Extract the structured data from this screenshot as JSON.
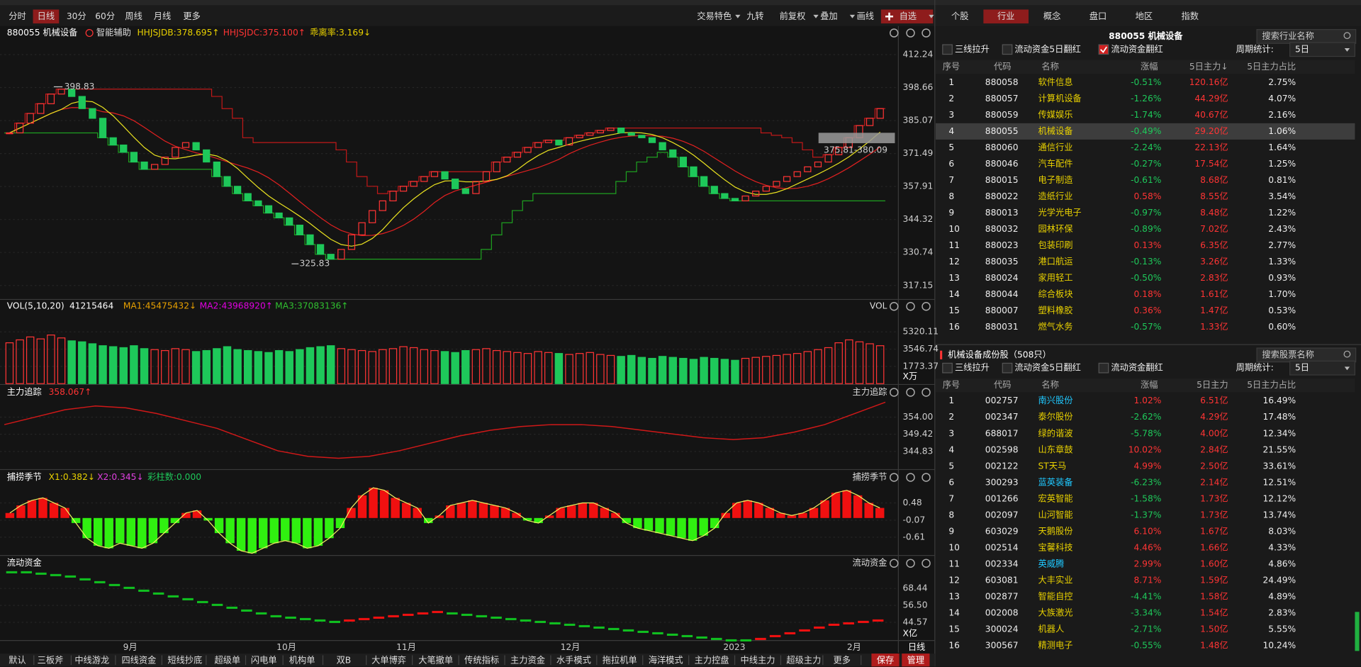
{
  "top_bar": {
    "periods": [
      "分时",
      "日线",
      "30分",
      "60分",
      "周线",
      "月线",
      "更多"
    ],
    "tools": [
      "交易特色",
      "九转",
      "前复权",
      "叠加",
      "画线",
      "自选"
    ]
  },
  "main_chart": {
    "title": "880055 机械设备",
    "assist": "智能辅助",
    "indicators": [
      "HHJSJDB:378.695↑",
      "HHJSJDC:375.100↑",
      "乖离率:3.169↓"
    ],
    "ylim": [
      311.4,
      424
    ],
    "yticks": [
      412.24,
      398.66,
      385.07,
      371.49,
      357.91,
      344.32,
      330.74,
      317.15
    ],
    "high_label": "398.83",
    "low_label": "325.83",
    "box_label": "375.81-380.09",
    "closes": [
      380,
      384,
      388,
      392,
      396,
      398,
      395,
      390,
      386,
      378,
      375,
      372,
      368,
      365,
      367,
      370,
      374,
      376,
      373,
      368,
      362,
      358,
      355,
      352,
      350,
      347,
      345,
      342,
      338,
      334,
      330,
      328,
      332,
      338,
      343,
      348,
      352,
      356,
      358,
      360,
      362,
      364,
      361,
      357,
      355,
      360,
      364,
      368,
      370,
      372,
      374,
      376,
      377,
      375,
      378,
      379,
      380,
      381,
      382,
      380,
      379,
      378,
      376,
      373,
      370,
      366,
      362,
      358,
      355,
      353,
      352,
      354,
      356,
      358,
      360,
      362,
      364,
      366,
      368,
      371,
      374,
      378,
      383,
      386,
      390
    ]
  },
  "volume_chart": {
    "title": "VOL(5,10,20)",
    "indicators": [
      "41215464",
      "MA1:45475432↓",
      "MA2:43968920↑",
      "MA3:37083136↑"
    ],
    "corner_label": "VOL",
    "unit": "X万",
    "ylim": [
      0,
      7140
    ],
    "yticks": [
      5320.11,
      3546.74,
      1773.37
    ],
    "values": [
      4200,
      4500,
      4800,
      4600,
      5000,
      4700,
      4400,
      4300,
      4100,
      3900,
      3800,
      3700,
      3900,
      3600,
      3500,
      3400,
      3600,
      3500,
      3300,
      3400,
      3600,
      3800,
      3500,
      3400,
      3300,
      3200,
      3400,
      3300,
      3500,
      3700,
      3800,
      3900,
      3600,
      3500,
      3400,
      3300,
      3500,
      3600,
      3800,
      3700,
      3500,
      3400,
      3300,
      3200,
      3400,
      3500,
      3600,
      3400,
      3300,
      3200,
      3100,
      3300,
      3200,
      3100,
      3000,
      3100,
      3200,
      3000,
      2900,
      2800,
      2900,
      2700,
      2600,
      2800,
      2700,
      2600,
      2500,
      2700,
      2600,
      2500,
      2400,
      2600,
      2700,
      2800,
      2900,
      3000,
      3100,
      3300,
      3500,
      3700,
      4200,
      4500,
      4300,
      4100,
      3900
    ]
  },
  "tracking_chart": {
    "title": "主力追踪",
    "indicator": "358.067↑",
    "corner_label": "主力追踪",
    "ylim": [
      340.2,
      358.8
    ],
    "yticks": [
      {
        "value": 354,
        "label": "354.00"
      },
      349.42,
      344.83
    ],
    "values": [
      352,
      354,
      356,
      357,
      356.5,
      355,
      353,
      351,
      348,
      345,
      343.5,
      343,
      343.5,
      345,
      347,
      349,
      350.5,
      351.5,
      352,
      352,
      351.5,
      350.5,
      349.5,
      348.5,
      348,
      348.5,
      350,
      352,
      355,
      358
    ]
  },
  "season_chart": {
    "title": "捕捞季节",
    "indicators": [
      "X1:0.382↓",
      "X2:0.345↓",
      "彩柱数:0.000"
    ],
    "corner_label": "捕捞季节",
    "ylim": [
      -1.19,
      1.07
    ],
    "yticks": [
      0.48,
      -0.07,
      -0.61
    ],
    "values": [
      0.16,
      0.4,
      0.56,
      0.64,
      0.48,
      0.32,
      -0.16,
      -0.64,
      -0.88,
      -0.96,
      -0.8,
      -0.88,
      -0.96,
      -0.8,
      -0.48,
      -0.16,
      0.16,
      0.24,
      -0.08,
      -0.48,
      -0.8,
      -1.04,
      -1.12,
      -0.96,
      -0.8,
      -0.72,
      -0.8,
      -0.96,
      -0.88,
      -0.64,
      -0.32,
      0.32,
      0.72,
      0.96,
      0.88,
      0.64,
      0.48,
      0.32,
      -0.16,
      0.08,
      0.4,
      0.48,
      0.56,
      0.48,
      0.4,
      0.32,
      0.16,
      -0.08,
      -0.16,
      0.08,
      0.32,
      0.4,
      0.48,
      0.48,
      0.32,
      0.16,
      -0.16,
      -0.32,
      -0.4,
      -0.48,
      -0.56,
      -0.64,
      -0.72,
      -0.56,
      -0.32,
      0.16,
      0.48,
      0.56,
      0.48,
      0.32,
      0.16,
      0.08,
      0.16,
      0.32,
      0.56,
      0.8,
      0.88,
      0.72,
      0.48,
      0.32
    ]
  },
  "flow_chart": {
    "title": "流动资金",
    "corner_label": "流动资金",
    "unit": "X亿",
    "ylim": [
      30.5,
      82.5
    ],
    "yticks": [
      68.44,
      {
        "value": 56.5,
        "label": "56.50"
      },
      44.57
    ],
    "values": [
      80,
      80,
      79,
      78,
      77,
      75,
      73,
      71,
      69,
      67,
      65,
      63,
      61,
      59,
      57,
      55,
      53,
      51,
      49,
      48,
      47,
      46,
      45,
      46,
      47,
      48,
      49,
      50,
      51,
      52,
      51,
      50,
      49,
      48,
      47,
      46,
      45,
      44,
      43,
      42,
      41,
      40,
      39,
      38,
      37,
      36,
      35,
      34,
      33,
      32,
      32,
      33,
      35,
      37,
      39,
      41,
      43,
      44,
      45,
      46
    ]
  },
  "x_axis": {
    "labels": [
      "9月",
      "10月",
      "11月",
      "12月",
      "2023",
      "2月"
    ],
    "period": "日线"
  },
  "bottom_tabs": {
    "tabs": [
      "默认",
      "三板斧",
      "中线游龙",
      "四线资金",
      "短线抄底",
      "超级单",
      "闪电单",
      "机构单",
      "双B",
      "大单博弈",
      "大笔撤单",
      "传统指标",
      "主力资金",
      "水手模式",
      "拖拉机单",
      "海洋模式",
      "主力控盘",
      "中线主力",
      "超级主力",
      "更多"
    ],
    "actions": [
      "保存",
      "管理"
    ]
  },
  "sector_panel": {
    "tabs": [
      "个股",
      "行业",
      "概念",
      "盘口",
      "地区",
      "指数"
    ],
    "title": "880055 机械设备",
    "search": "搜索行业名称",
    "filters": [
      "三线拉升",
      "流动资金5日翻红",
      "流动资金翻红"
    ],
    "period_label": "周期统计:",
    "period": "5日",
    "columns": [
      "序号",
      "代码",
      "名称",
      "涨幅",
      "5日主力↓",
      "5日主力占比"
    ],
    "rows": [
      [
        "1",
        "880058",
        "软件信息",
        "-0.51%",
        "120.16亿",
        "2.75%"
      ],
      [
        "2",
        "880057",
        "计算机设备",
        "-1.26%",
        "44.29亿",
        "4.07%"
      ],
      [
        "3",
        "880059",
        "传媒娱乐",
        "-1.74%",
        "40.67亿",
        "2.16%"
      ],
      [
        "4",
        "880055",
        "机械设备",
        "-0.49%",
        "29.20亿",
        "1.06%"
      ],
      [
        "5",
        "880060",
        "通信行业",
        "-2.24%",
        "22.13亿",
        "1.64%"
      ],
      [
        "6",
        "880046",
        "汽车配件",
        "-0.27%",
        "17.54亿",
        "1.25%"
      ],
      [
        "7",
        "880015",
        "电子制造",
        "-0.61%",
        "8.68亿",
        "0.81%"
      ],
      [
        "8",
        "880022",
        "造纸行业",
        "0.58%",
        "8.55亿",
        "3.54%"
      ],
      [
        "9",
        "880013",
        "光学光电子",
        "-0.97%",
        "8.48亿",
        "1.22%"
      ],
      [
        "10",
        "880032",
        "园林环保",
        "-0.89%",
        "7.02亿",
        "2.43%"
      ],
      [
        "11",
        "880023",
        "包装印刷",
        "0.13%",
        "6.35亿",
        "2.77%"
      ],
      [
        "12",
        "880035",
        "港口航运",
        "-0.13%",
        "3.26亿",
        "1.33%"
      ],
      [
        "13",
        "880024",
        "家用轻工",
        "-0.50%",
        "2.83亿",
        "0.93%"
      ],
      [
        "14",
        "880044",
        "综合板块",
        "0.18%",
        "1.61亿",
        "1.70%"
      ],
      [
        "15",
        "880007",
        "塑料橡胶",
        "0.36%",
        "1.47亿",
        "0.53%"
      ],
      [
        "16",
        "880031",
        "燃气水务",
        "-0.57%",
        "1.33亿",
        "0.60%"
      ]
    ]
  },
  "stock_panel": {
    "title": "机械设备成份股（508只）",
    "search": "搜索股票名称",
    "filters": [
      "三线拉升",
      "流动资金5日翻红",
      "流动资金翻红"
    ],
    "period_label": "周期统计:",
    "period": "5日",
    "columns": [
      "序号",
      "代码",
      "名称",
      "涨幅",
      "5日主力",
      "5日主力占比"
    ],
    "rows": [
      [
        "1",
        "002757",
        "南兴股份",
        "1.02%",
        "6.51亿",
        "16.49%"
      ],
      [
        "2",
        "002347",
        "泰尔股份",
        "-2.62%",
        "4.29亿",
        "17.48%"
      ],
      [
        "3",
        "688017",
        "绿的谐波",
        "-5.78%",
        "4.00亿",
        "12.34%"
      ],
      [
        "4",
        "002598",
        "山东章鼓",
        "10.02%",
        "2.84亿",
        "21.55%"
      ],
      [
        "5",
        "002122",
        "ST天马",
        "4.99%",
        "2.50亿",
        "33.61%"
      ],
      [
        "6",
        "300293",
        "蓝英装备",
        "-6.23%",
        "2.14亿",
        "12.51%"
      ],
      [
        "7",
        "001266",
        "宏英智能",
        "-1.58%",
        "1.73亿",
        "12.12%"
      ],
      [
        "8",
        "002097",
        "山河智能",
        "-1.37%",
        "1.73亿",
        "13.74%"
      ],
      [
        "9",
        "603029",
        "天鹅股份",
        "6.10%",
        "1.67亿",
        "8.03%"
      ],
      [
        "10",
        "002514",
        "宝馨科技",
        "4.46%",
        "1.66亿",
        "4.33%"
      ],
      [
        "11",
        "002334",
        "英威腾",
        "2.99%",
        "1.60亿",
        "4.86%"
      ],
      [
        "12",
        "603081",
        "大丰实业",
        "8.71%",
        "1.59亿",
        "24.49%"
      ],
      [
        "13",
        "002877",
        "智能自控",
        "-4.41%",
        "1.58亿",
        "4.89%"
      ],
      [
        "14",
        "002008",
        "大族激光",
        "-3.34%",
        "1.54亿",
        "2.83%"
      ],
      [
        "15",
        "300024",
        "机器人",
        "-2.71%",
        "1.50亿",
        "5.55%"
      ],
      [
        "16",
        "300567",
        "精测电子",
        "-0.55%",
        "1.48亿",
        "10.24%"
      ]
    ]
  }
}
